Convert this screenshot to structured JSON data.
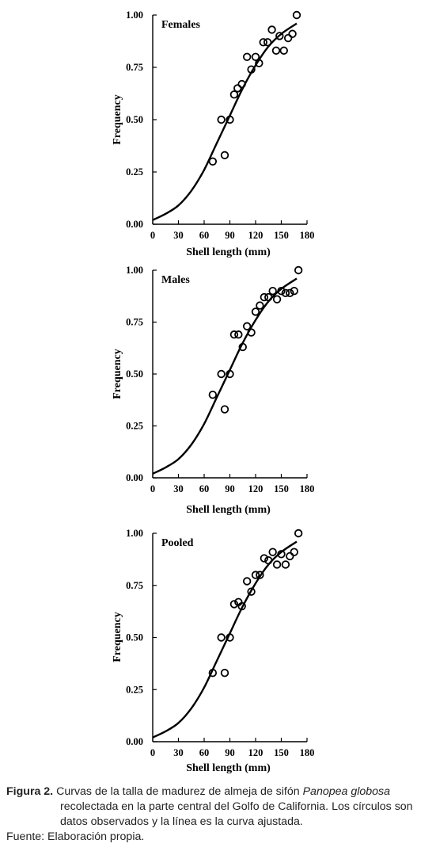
{
  "chart_data": [
    {
      "type": "scatter",
      "panel_label": "Females",
      "xlabel": "Shell length (mm)",
      "ylabel": "Frequency",
      "xlim": [
        0,
        180
      ],
      "ylim": [
        0,
        1
      ],
      "xticks": [
        0,
        30,
        60,
        90,
        120,
        150,
        180
      ],
      "yticks": [
        0,
        0.25,
        0.5,
        0.75,
        1.0
      ],
      "xtick_labels": [
        "0",
        "30",
        "60",
        "90",
        "120",
        "150",
        "180"
      ],
      "ytick_labels": [
        "0.00",
        "0.25",
        "0.50",
        "0.75",
        "1.00"
      ],
      "points": [
        [
          70,
          0.3
        ],
        [
          80,
          0.5
        ],
        [
          84,
          0.33
        ],
        [
          90,
          0.5
        ],
        [
          95,
          0.62
        ],
        [
          99,
          0.65
        ],
        [
          104,
          0.67
        ],
        [
          110,
          0.8
        ],
        [
          115,
          0.74
        ],
        [
          120,
          0.8
        ],
        [
          124,
          0.77
        ],
        [
          129,
          0.87
        ],
        [
          134,
          0.87
        ],
        [
          139,
          0.93
        ],
        [
          144,
          0.83
        ],
        [
          148,
          0.9
        ],
        [
          153,
          0.83
        ],
        [
          158,
          0.89
        ],
        [
          163,
          0.91
        ],
        [
          168,
          1.0
        ]
      ],
      "fitted_curve": [
        [
          0,
          0.02
        ],
        [
          15,
          0.05
        ],
        [
          30,
          0.09
        ],
        [
          45,
          0.16
        ],
        [
          60,
          0.26
        ],
        [
          75,
          0.39
        ],
        [
          90,
          0.52
        ],
        [
          105,
          0.65
        ],
        [
          120,
          0.76
        ],
        [
          135,
          0.85
        ],
        [
          150,
          0.91
        ],
        [
          168,
          0.96
        ]
      ]
    },
    {
      "type": "scatter",
      "panel_label": "Males",
      "xlabel": "Shell length (mm)",
      "ylabel": "Frequency",
      "xlim": [
        0,
        180
      ],
      "ylim": [
        0,
        1
      ],
      "xticks": [
        0,
        30,
        60,
        90,
        120,
        150,
        180
      ],
      "yticks": [
        0,
        0.25,
        0.5,
        0.75,
        1.0
      ],
      "xtick_labels": [
        "0",
        "30",
        "60",
        "90",
        "120",
        "150",
        "180"
      ],
      "ytick_labels": [
        "0.00",
        "0.25",
        "0.50",
        "0.75",
        "1.00"
      ],
      "points": [
        [
          70,
          0.4
        ],
        [
          80,
          0.5
        ],
        [
          84,
          0.33
        ],
        [
          90,
          0.5
        ],
        [
          95,
          0.69
        ],
        [
          100,
          0.69
        ],
        [
          105,
          0.63
        ],
        [
          110,
          0.73
        ],
        [
          115,
          0.7
        ],
        [
          120,
          0.8
        ],
        [
          125,
          0.83
        ],
        [
          130,
          0.87
        ],
        [
          135,
          0.87
        ],
        [
          140,
          0.9
        ],
        [
          145,
          0.86
        ],
        [
          150,
          0.9
        ],
        [
          155,
          0.89
        ],
        [
          160,
          0.89
        ],
        [
          165,
          0.9
        ],
        [
          170,
          1.0
        ]
      ],
      "fitted_curve": [
        [
          0,
          0.02
        ],
        [
          15,
          0.05
        ],
        [
          30,
          0.09
        ],
        [
          45,
          0.16
        ],
        [
          60,
          0.26
        ],
        [
          75,
          0.39
        ],
        [
          90,
          0.52
        ],
        [
          105,
          0.65
        ],
        [
          120,
          0.76
        ],
        [
          135,
          0.85
        ],
        [
          150,
          0.91
        ],
        [
          168,
          0.96
        ]
      ]
    },
    {
      "type": "scatter",
      "panel_label": "Pooled",
      "xlabel": "Shell length (mm)",
      "ylabel": "Frequency",
      "xlim": [
        0,
        180
      ],
      "ylim": [
        0,
        1
      ],
      "xticks": [
        0,
        30,
        60,
        90,
        120,
        150,
        180
      ],
      "yticks": [
        0,
        0.25,
        0.5,
        0.75,
        1.0
      ],
      "xtick_labels": [
        "0",
        "30",
        "60",
        "90",
        "120",
        "150",
        "180"
      ],
      "ytick_labels": [
        "0.00",
        "0.25",
        "0.50",
        "0.75",
        "1.00"
      ],
      "points": [
        [
          70,
          0.33
        ],
        [
          80,
          0.5
        ],
        [
          84,
          0.33
        ],
        [
          90,
          0.5
        ],
        [
          95,
          0.66
        ],
        [
          100,
          0.67
        ],
        [
          104,
          0.65
        ],
        [
          110,
          0.77
        ],
        [
          115,
          0.72
        ],
        [
          120,
          0.8
        ],
        [
          125,
          0.8
        ],
        [
          130,
          0.88
        ],
        [
          135,
          0.87
        ],
        [
          140,
          0.91
        ],
        [
          145,
          0.85
        ],
        [
          150,
          0.9
        ],
        [
          155,
          0.85
        ],
        [
          160,
          0.89
        ],
        [
          165,
          0.91
        ],
        [
          170,
          1.0
        ]
      ],
      "fitted_curve": [
        [
          0,
          0.02
        ],
        [
          15,
          0.05
        ],
        [
          30,
          0.09
        ],
        [
          45,
          0.16
        ],
        [
          60,
          0.26
        ],
        [
          75,
          0.39
        ],
        [
          90,
          0.52
        ],
        [
          105,
          0.65
        ],
        [
          120,
          0.76
        ],
        [
          135,
          0.85
        ],
        [
          150,
          0.91
        ],
        [
          168,
          0.96
        ]
      ]
    }
  ],
  "caption": {
    "figure_label": "Figura 2.",
    "text_before_species": " Curvas de la talla de madurez de almeja de sifón ",
    "species": "Panopea globosa",
    "text_after_species": " recolectada en la parte central del Golfo de California. Los círculos son datos observados y la línea es la curva ajustada.",
    "source": "Fuente: Elaboración propia."
  }
}
